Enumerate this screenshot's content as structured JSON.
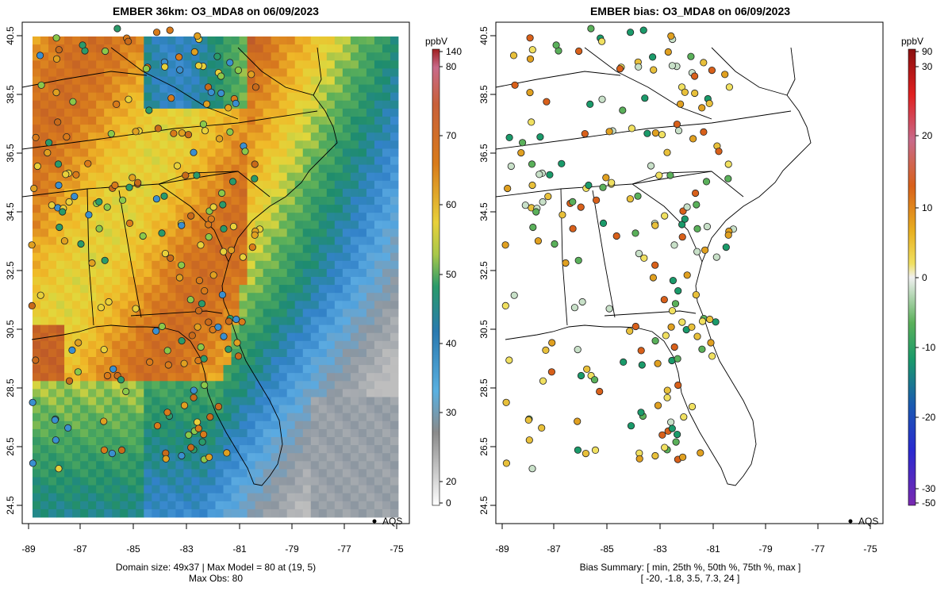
{
  "left_panel": {
    "title": "EMBER 36km: O3_MDA8 on 06/09/2023",
    "x_ticks": [
      "-89",
      "-87",
      "-85",
      "-83",
      "-81",
      "-79",
      "-77",
      "-75"
    ],
    "y_ticks": [
      "40.5",
      "38.5",
      "36.5",
      "34.5",
      "32.5",
      "30.5",
      "28.5",
      "26.5",
      "24.5"
    ],
    "legend_label": "AQS",
    "footer_line1": "Domain size: 49x37 | Max Model = 80 at (19, 5)",
    "footer_line2": "Max Obs: 80",
    "colorbar": {
      "unit": "ppbV",
      "labels": [
        "140",
        "80",
        "70",
        "60",
        "50",
        "40",
        "30",
        "20",
        "0"
      ]
    }
  },
  "right_panel": {
    "title": "EMBER bias: O3_MDA8 on 06/09/2023",
    "x_ticks": [
      "-89",
      "-87",
      "-85",
      "-83",
      "-81",
      "-79",
      "-77",
      "-75"
    ],
    "y_ticks": [
      "40.5",
      "38.5",
      "36.5",
      "34.5",
      "32.5",
      "30.5",
      "28.5",
      "26.5",
      "24.5"
    ],
    "legend_label": "AQS",
    "footer_line1": "Bias Summary: [ min, 25th %, 50th %, 75th %, max ]",
    "footer_line2": "[ -20,   -1.8,   3.5,   7.3,   24 ]",
    "colorbar": {
      "unit": "ppbV",
      "labels": [
        "90",
        "30",
        "20",
        "10",
        "0",
        "-10",
        "-20",
        "-30",
        "-50"
      ]
    }
  },
  "colors": {
    "ozone_high": "#c8651a",
    "ozone_mid": "#e8c83a",
    "ozone_low_green": "#2a9a6a",
    "ozone_low_blue": "#3a8fd0",
    "bias_pos": "#e08a1a",
    "bias_neg": "#1f9a6e"
  }
}
